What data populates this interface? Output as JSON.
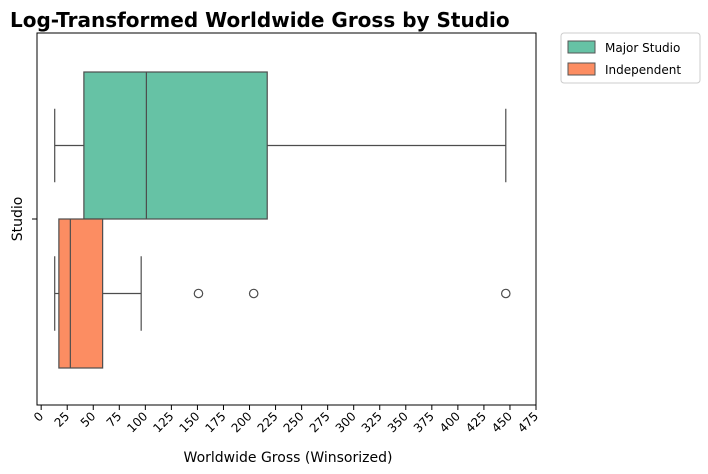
{
  "chart_data": {
    "type": "box",
    "orientation": "horizontal",
    "title": "Log-Transformed Worldwide Gross by Studio",
    "xlabel": "Worldwide Gross (Winsorized)",
    "ylabel": "Studio",
    "xlim": [
      -4,
      475
    ],
    "xticks": [
      0,
      25,
      50,
      75,
      100,
      125,
      150,
      175,
      200,
      225,
      250,
      275,
      300,
      325,
      350,
      375,
      400,
      425,
      450,
      475
    ],
    "grid": false,
    "legend_position": "outside-top-right",
    "series": [
      {
        "name": "Major Studio",
        "color": "#66c2a5",
        "whisker_low": 13,
        "q1": 41,
        "median": 101,
        "q3": 217,
        "whisker_high": 446,
        "outliers": []
      },
      {
        "name": "Independent",
        "color": "#fc8d62",
        "whisker_low": 13,
        "q1": 17,
        "median": 28,
        "q3": 59,
        "whisker_high": 96,
        "outliers": [
          151,
          204,
          446
        ]
      }
    ]
  }
}
